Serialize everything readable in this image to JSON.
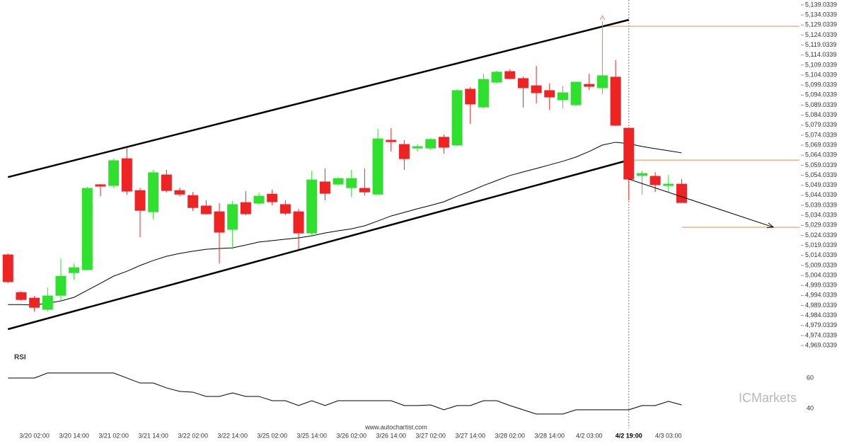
{
  "chart_data": {
    "type": "candlestick",
    "categories": [
      null,
      null,
      "3/20 02:00",
      null,
      null,
      "3/20 14:00",
      null,
      null,
      "3/21 02:00",
      null,
      null,
      "3/21 14:00",
      null,
      null,
      "3/22 02:00",
      null,
      null,
      "3/22 14:00",
      null,
      null,
      "3/25 02:00",
      null,
      null,
      "3/25 14:00",
      null,
      null,
      "3/26 02:00",
      null,
      null,
      "3/26 14:00",
      null,
      null,
      "3/27 02:00",
      null,
      null,
      "3/27 14:00",
      null,
      null,
      "3/28 02:00",
      null,
      null,
      "3/28 14:00",
      null,
      null,
      "4/2 03:00",
      null,
      null,
      "4/2 19:00",
      null,
      null,
      "4/3 03:00",
      null
    ],
    "open": [
      5014.3,
      4995.5,
      4992.7,
      4987.1,
      4994.1,
      5005.4,
      5006.9,
      5049.3,
      5048.9,
      5062.3,
      5046.4,
      5035.8,
      5054.2,
      5046.4,
      5043.9,
      5038.7,
      5035.8,
      5027.0,
      5040.4,
      5040.1,
      5044.6,
      5039.4,
      5035.8,
      5025.2,
      5050.7,
      5049.6,
      5047.8,
      5047.5,
      5044.6,
      5071.5,
      5069.4,
      5067.6,
      5067.6,
      5073.0,
      5069.1,
      5097.0,
      5088.1,
      5100.5,
      5105.8,
      5102.3,
      5098.7,
      5096.3,
      5091.7,
      5089.2,
      5099.4,
      5097.7,
      5103.0,
      5077.5,
      5053.9,
      5053.5,
      5048.9,
      5049.6
    ],
    "high": [
      5015.0,
      4996.2,
      4993.8,
      4998.0,
      5012.5,
      5010.0,
      5048.2,
      5049.6,
      5062.3,
      5068.0,
      5047.8,
      5056.7,
      5056.7,
      5047.8,
      5045.7,
      5041.5,
      5040.1,
      5041.1,
      5046.1,
      5045.4,
      5046.8,
      5041.5,
      5037.2,
      5056.3,
      5057.4,
      5053.1,
      5056.7,
      5057.4,
      5077.2,
      5077.5,
      5071.5,
      5069.4,
      5072.6,
      5074.4,
      5097.0,
      5098.0,
      5104.7,
      5106.2,
      5106.9,
      5103.3,
      5108.6,
      5099.8,
      5098.7,
      5100.5,
      5104.7,
      5130.9,
      5111.5,
      5077.9,
      5056.3,
      5055.6,
      5054.2,
      5052.1
    ],
    "low": [
      5000.1,
      4991.3,
      4986.0,
      4986.0,
      4991.3,
      5001.9,
      5006.9,
      5043.6,
      5047.8,
      5044.3,
      5023.1,
      5032.0,
      5045.4,
      5043.6,
      5036.2,
      5034.4,
      5010.0,
      5017.1,
      5034.1,
      5039.4,
      5039.0,
      5034.1,
      5017.1,
      5023.8,
      5041.5,
      5048.9,
      5043.2,
      5043.9,
      5044.6,
      5065.9,
      5056.7,
      5065.9,
      5066.6,
      5064.8,
      5068.7,
      5079.7,
      5087.4,
      5099.8,
      5101.9,
      5087.8,
      5089.9,
      5086.7,
      5087.4,
      5088.5,
      5096.6,
      5094.5,
      5078.6,
      5041.5,
      5044.3,
      5045.7,
      5045.4,
      5040.4
    ],
    "close": [
      5000.9,
      4992.0,
      4988.1,
      4993.8,
      5003.6,
      5007.9,
      5047.5,
      5048.6,
      5061.3,
      5046.1,
      5036.5,
      5055.3,
      5046.4,
      5044.6,
      5037.9,
      5034.8,
      5025.6,
      5039.4,
      5034.8,
      5043.6,
      5040.8,
      5035.1,
      5025.2,
      5051.7,
      5045.0,
      5052.4,
      5052.4,
      5045.7,
      5072.2,
      5070.8,
      5062.3,
      5068.3,
      5071.9,
      5068.0,
      5096.3,
      5089.6,
      5101.9,
      5105.5,
      5102.3,
      5097.7,
      5095.2,
      5093.1,
      5095.2,
      5100.5,
      5098.4,
      5103.7,
      5079.0,
      5052.1,
      5054.9,
      5049.3,
      5049.6,
      5040.4
    ],
    "ma": [
      4989.5,
      4989.5,
      4989.2,
      4990.2,
      4991.3,
      4993.1,
      4996.6,
      5000.1,
      5003.7,
      5006.1,
      5009.0,
      5011.5,
      5013.6,
      5015.0,
      5016.1,
      5017.1,
      5017.5,
      5017.8,
      5019.2,
      5020.7,
      5021.4,
      5022.1,
      5022.8,
      5023.8,
      5025.2,
      5026.3,
      5027.3,
      5028.8,
      5031.2,
      5033.7,
      5035.5,
      5037.3,
      5039.0,
      5040.8,
      5043.6,
      5046.1,
      5048.9,
      5051.4,
      5053.9,
      5055.7,
      5057.4,
      5059.2,
      5061.0,
      5063.1,
      5065.9,
      5069.1,
      5070.5,
      5069.8,
      5068.4,
      5067.3,
      5066.3,
      5065.2
    ],
    "up_color": "#2fe02f",
    "down_color": "#ee2424",
    "ylim": [
      4966.6,
      5141.5
    ],
    "yticks": [
      {
        "value": 5139.0339,
        "label": "5,139.0339"
      },
      {
        "value": 5134.0339,
        "label": "5,134.0339"
      },
      {
        "value": 5129.0339,
        "label": "5,129.0339"
      },
      {
        "value": 5124.0339,
        "label": "5,124.0339"
      },
      {
        "value": 5119.0339,
        "label": "5,119.0339"
      },
      {
        "value": 5114.0339,
        "label": "5,114.0339"
      },
      {
        "value": 5109.0339,
        "label": "5,109.0339"
      },
      {
        "value": 5104.0339,
        "label": "5,104.0339"
      },
      {
        "value": 5099.0339,
        "label": "5,099.0339"
      },
      {
        "value": 5094.0339,
        "label": "5,094.0339"
      },
      {
        "value": 5089.0339,
        "label": "5,089.0339"
      },
      {
        "value": 5084.0339,
        "label": "5,084.0339"
      },
      {
        "value": 5079.0339,
        "label": "5,079.0339"
      },
      {
        "value": 5074.0339,
        "label": "5,074.0339"
      },
      {
        "value": 5069.0339,
        "label": "5,069.0339"
      },
      {
        "value": 5064.0339,
        "label": "5,064.0339"
      },
      {
        "value": 5059.0339,
        "label": "5,059.0339"
      },
      {
        "value": 5054.0339,
        "label": "5,054.0339"
      },
      {
        "value": 5049.0339,
        "label": "5,049.0339"
      },
      {
        "value": 5044.0339,
        "label": "5,044.0339"
      },
      {
        "value": 5039.0339,
        "label": "5,039.0339"
      },
      {
        "value": 5034.0339,
        "label": "5,034.0339"
      },
      {
        "value": 5029.0339,
        "label": "5,029.0339"
      },
      {
        "value": 5024.0339,
        "label": "5,024.0339"
      },
      {
        "value": 5019.0339,
        "label": "5,019.0339"
      },
      {
        "value": 5014.0339,
        "label": "5,014.0339"
      },
      {
        "value": 5009.0339,
        "label": "5,009.0339"
      },
      {
        "value": 5004.0339,
        "label": "5,004.0339"
      },
      {
        "value": 4999.0339,
        "label": "4,999.0339"
      },
      {
        "value": 4994.0339,
        "label": "4,994.0339"
      },
      {
        "value": 4989.0339,
        "label": "4,989.0339"
      },
      {
        "value": 4984.0339,
        "label": "4,984.0339"
      },
      {
        "value": 4979.0339,
        "label": "4,979.0339"
      },
      {
        "value": 4974.0339,
        "label": "4,974.0339"
      },
      {
        "value": 4969.0339,
        "label": "4,969.0339"
      }
    ],
    "highlight": 47,
    "channel": {
      "upper": [
        5053.1,
        5131.6
      ],
      "lower": [
        4977.2,
        5061.6
      ]
    },
    "levels": [
      5128.4,
      5061.6,
      5028.1
    ],
    "forecast": [
      5052.1,
      5028.1
    ],
    "rsi": {
      "label": "RSI",
      "values": [
        60,
        60,
        60,
        63.3,
        63.3,
        63.3,
        63.3,
        63.3,
        63.3,
        60,
        56.7,
        56.7,
        53.5,
        51.2,
        50.7,
        47.9,
        47.9,
        50.2,
        47.9,
        47.9,
        45.1,
        45.1,
        41.9,
        45.1,
        41.9,
        45.1,
        45.1,
        45.1,
        45.1,
        45.1,
        41.9,
        41.9,
        42.3,
        39.1,
        41.9,
        41.9,
        45.1,
        45.1,
        41.9,
        39.1,
        36.3,
        36.3,
        36.3,
        39.1,
        39.1,
        39.1,
        39.1,
        39.1,
        41.9,
        41.9,
        44.7,
        42.3
      ],
      "ylim": [
        30.2,
        75.8
      ],
      "yticks": [
        60,
        40
      ]
    },
    "source": "www.autochartist.com",
    "brand": "ICMarkets"
  }
}
